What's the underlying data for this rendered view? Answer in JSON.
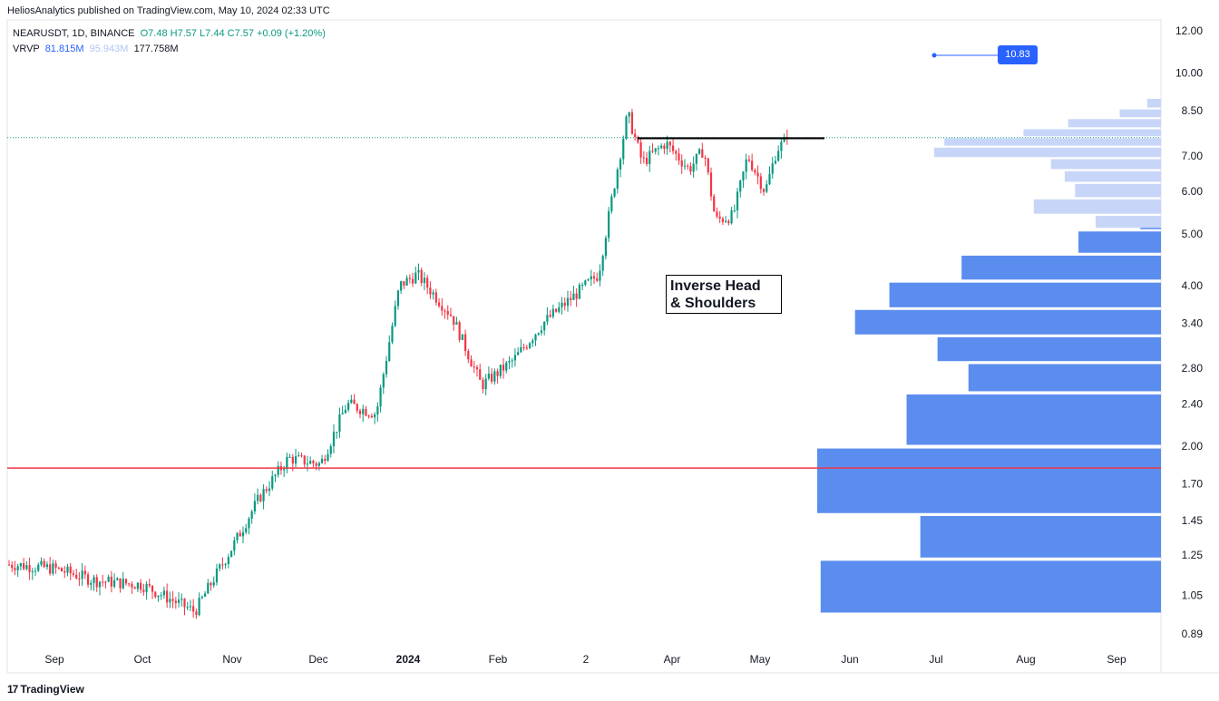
{
  "header": {
    "publisher_line": "HeliosAnalytics published on TradingView.com, May 10, 2024 02:33 UTC"
  },
  "legend": {
    "symbol": "NEARUSDT, 1D, BINANCE",
    "ohlc": "O7.48  H7.57  L7.44  C7.57  +0.09 (+1.20%)",
    "vrvp_label": "VRVP",
    "vrvp_up": "81.815M",
    "vrvp_down": "95.943M",
    "vrvp_total": "177.758M"
  },
  "price_tag": "10.83",
  "annotation": {
    "line1": "Inverse Head",
    "line2": "& Shoulders"
  },
  "footer": {
    "brand": "TradingView"
  },
  "colors": {
    "up": "#089981",
    "down": "#f23645",
    "volume_profile_dark": "#5b8def",
    "volume_profile_light": "#c7d6f8",
    "support_line": "#f23645",
    "neckline": "#000000",
    "price_tag_bg": "#2962ff"
  },
  "chart_data": {
    "type": "candlestick",
    "scale": "log",
    "ylim": [
      0.89,
      12.0
    ],
    "y_ticks": [
      "12.00",
      "10.00",
      "8.50",
      "7.00",
      "6.00",
      "5.00",
      "4.00",
      "3.40",
      "2.80",
      "2.40",
      "2.00",
      "1.70",
      "1.45",
      "1.25",
      "1.05",
      "0.89"
    ],
    "x_ticks": [
      "Sep",
      "Oct",
      "Nov",
      "Dec",
      "2024",
      "Feb",
      "2",
      "Apr",
      "May",
      "Jun",
      "Jul",
      "Aug",
      "Sep"
    ],
    "support_level": 1.82,
    "neckline_level": 7.55,
    "annotation": "Inverse Head & Shoulders",
    "close_path_approx": [
      {
        "date": "2023-08-18",
        "close": 1.2
      },
      {
        "date": "2023-09-01",
        "close": 1.18
      },
      {
        "date": "2023-09-15",
        "close": 1.12
      },
      {
        "date": "2023-10-01",
        "close": 1.1
      },
      {
        "date": "2023-10-19",
        "close": 0.98
      },
      {
        "date": "2023-11-01",
        "close": 1.3
      },
      {
        "date": "2023-11-10",
        "close": 1.6
      },
      {
        "date": "2023-11-20",
        "close": 1.9
      },
      {
        "date": "2023-12-01",
        "close": 1.85
      },
      {
        "date": "2023-12-10",
        "close": 2.4
      },
      {
        "date": "2023-12-20",
        "close": 2.3
      },
      {
        "date": "2023-12-28",
        "close": 4.0
      },
      {
        "date": "2024-01-03",
        "close": 4.2
      },
      {
        "date": "2024-01-15",
        "close": 3.5
      },
      {
        "date": "2024-01-25",
        "close": 2.6
      },
      {
        "date": "2024-02-05",
        "close": 2.9
      },
      {
        "date": "2024-02-15",
        "close": 3.4
      },
      {
        "date": "2024-02-25",
        "close": 3.8
      },
      {
        "date": "2024-03-05",
        "close": 4.2
      },
      {
        "date": "2024-03-10",
        "close": 6.0
      },
      {
        "date": "2024-03-15",
        "close": 8.4
      },
      {
        "date": "2024-03-20",
        "close": 6.8
      },
      {
        "date": "2024-03-28",
        "close": 7.4
      },
      {
        "date": "2024-04-05",
        "close": 6.6
      },
      {
        "date": "2024-04-10",
        "close": 7.2
      },
      {
        "date": "2024-04-14",
        "close": 5.3
      },
      {
        "date": "2024-04-20",
        "close": 5.4
      },
      {
        "date": "2024-04-25",
        "close": 7.0
      },
      {
        "date": "2024-05-01",
        "close": 6.0
      },
      {
        "date": "2024-05-05",
        "close": 7.2
      },
      {
        "date": "2024-05-09",
        "close": 7.57
      }
    ],
    "volume_profile": [
      {
        "low": 0.97,
        "high": 1.22,
        "rel": 0.99,
        "tone": "dark"
      },
      {
        "low": 1.23,
        "high": 1.48,
        "rel": 0.7,
        "tone": "dark"
      },
      {
        "low": 1.49,
        "high": 1.98,
        "rel": 1.0,
        "tone": "dark"
      },
      {
        "low": 2.0,
        "high": 2.5,
        "rel": 0.74,
        "tone": "dark"
      },
      {
        "low": 2.52,
        "high": 2.85,
        "rel": 0.56,
        "tone": "dark"
      },
      {
        "low": 2.87,
        "high": 3.2,
        "rel": 0.65,
        "tone": "dark"
      },
      {
        "low": 3.22,
        "high": 3.6,
        "rel": 0.89,
        "tone": "dark"
      },
      {
        "low": 3.62,
        "high": 4.05,
        "rel": 0.79,
        "tone": "dark"
      },
      {
        "low": 4.08,
        "high": 4.55,
        "rel": 0.58,
        "tone": "dark"
      },
      {
        "low": 4.58,
        "high": 5.05,
        "rel": 0.24,
        "tone": "dark"
      },
      {
        "low": 5.07,
        "high": 5.35,
        "rel": 0.06,
        "tone": "dark"
      },
      {
        "low": 5.1,
        "high": 5.4,
        "rel": 0.19,
        "tone": "light"
      },
      {
        "low": 5.42,
        "high": 5.8,
        "rel": 0.37,
        "tone": "light"
      },
      {
        "low": 5.82,
        "high": 6.2,
        "rel": 0.25,
        "tone": "light"
      },
      {
        "low": 6.22,
        "high": 6.55,
        "rel": 0.28,
        "tone": "light"
      },
      {
        "low": 6.57,
        "high": 6.9,
        "rel": 0.32,
        "tone": "light"
      },
      {
        "low": 6.92,
        "high": 7.25,
        "rel": 0.66,
        "tone": "light"
      },
      {
        "low": 7.27,
        "high": 7.55,
        "rel": 0.63,
        "tone": "light"
      },
      {
        "low": 7.57,
        "high": 7.85,
        "rel": 0.4,
        "tone": "light"
      },
      {
        "low": 7.87,
        "high": 8.2,
        "rel": 0.27,
        "tone": "light"
      },
      {
        "low": 8.22,
        "high": 8.55,
        "rel": 0.12,
        "tone": "light"
      },
      {
        "low": 8.57,
        "high": 8.95,
        "rel": 0.04,
        "tone": "light"
      }
    ]
  }
}
